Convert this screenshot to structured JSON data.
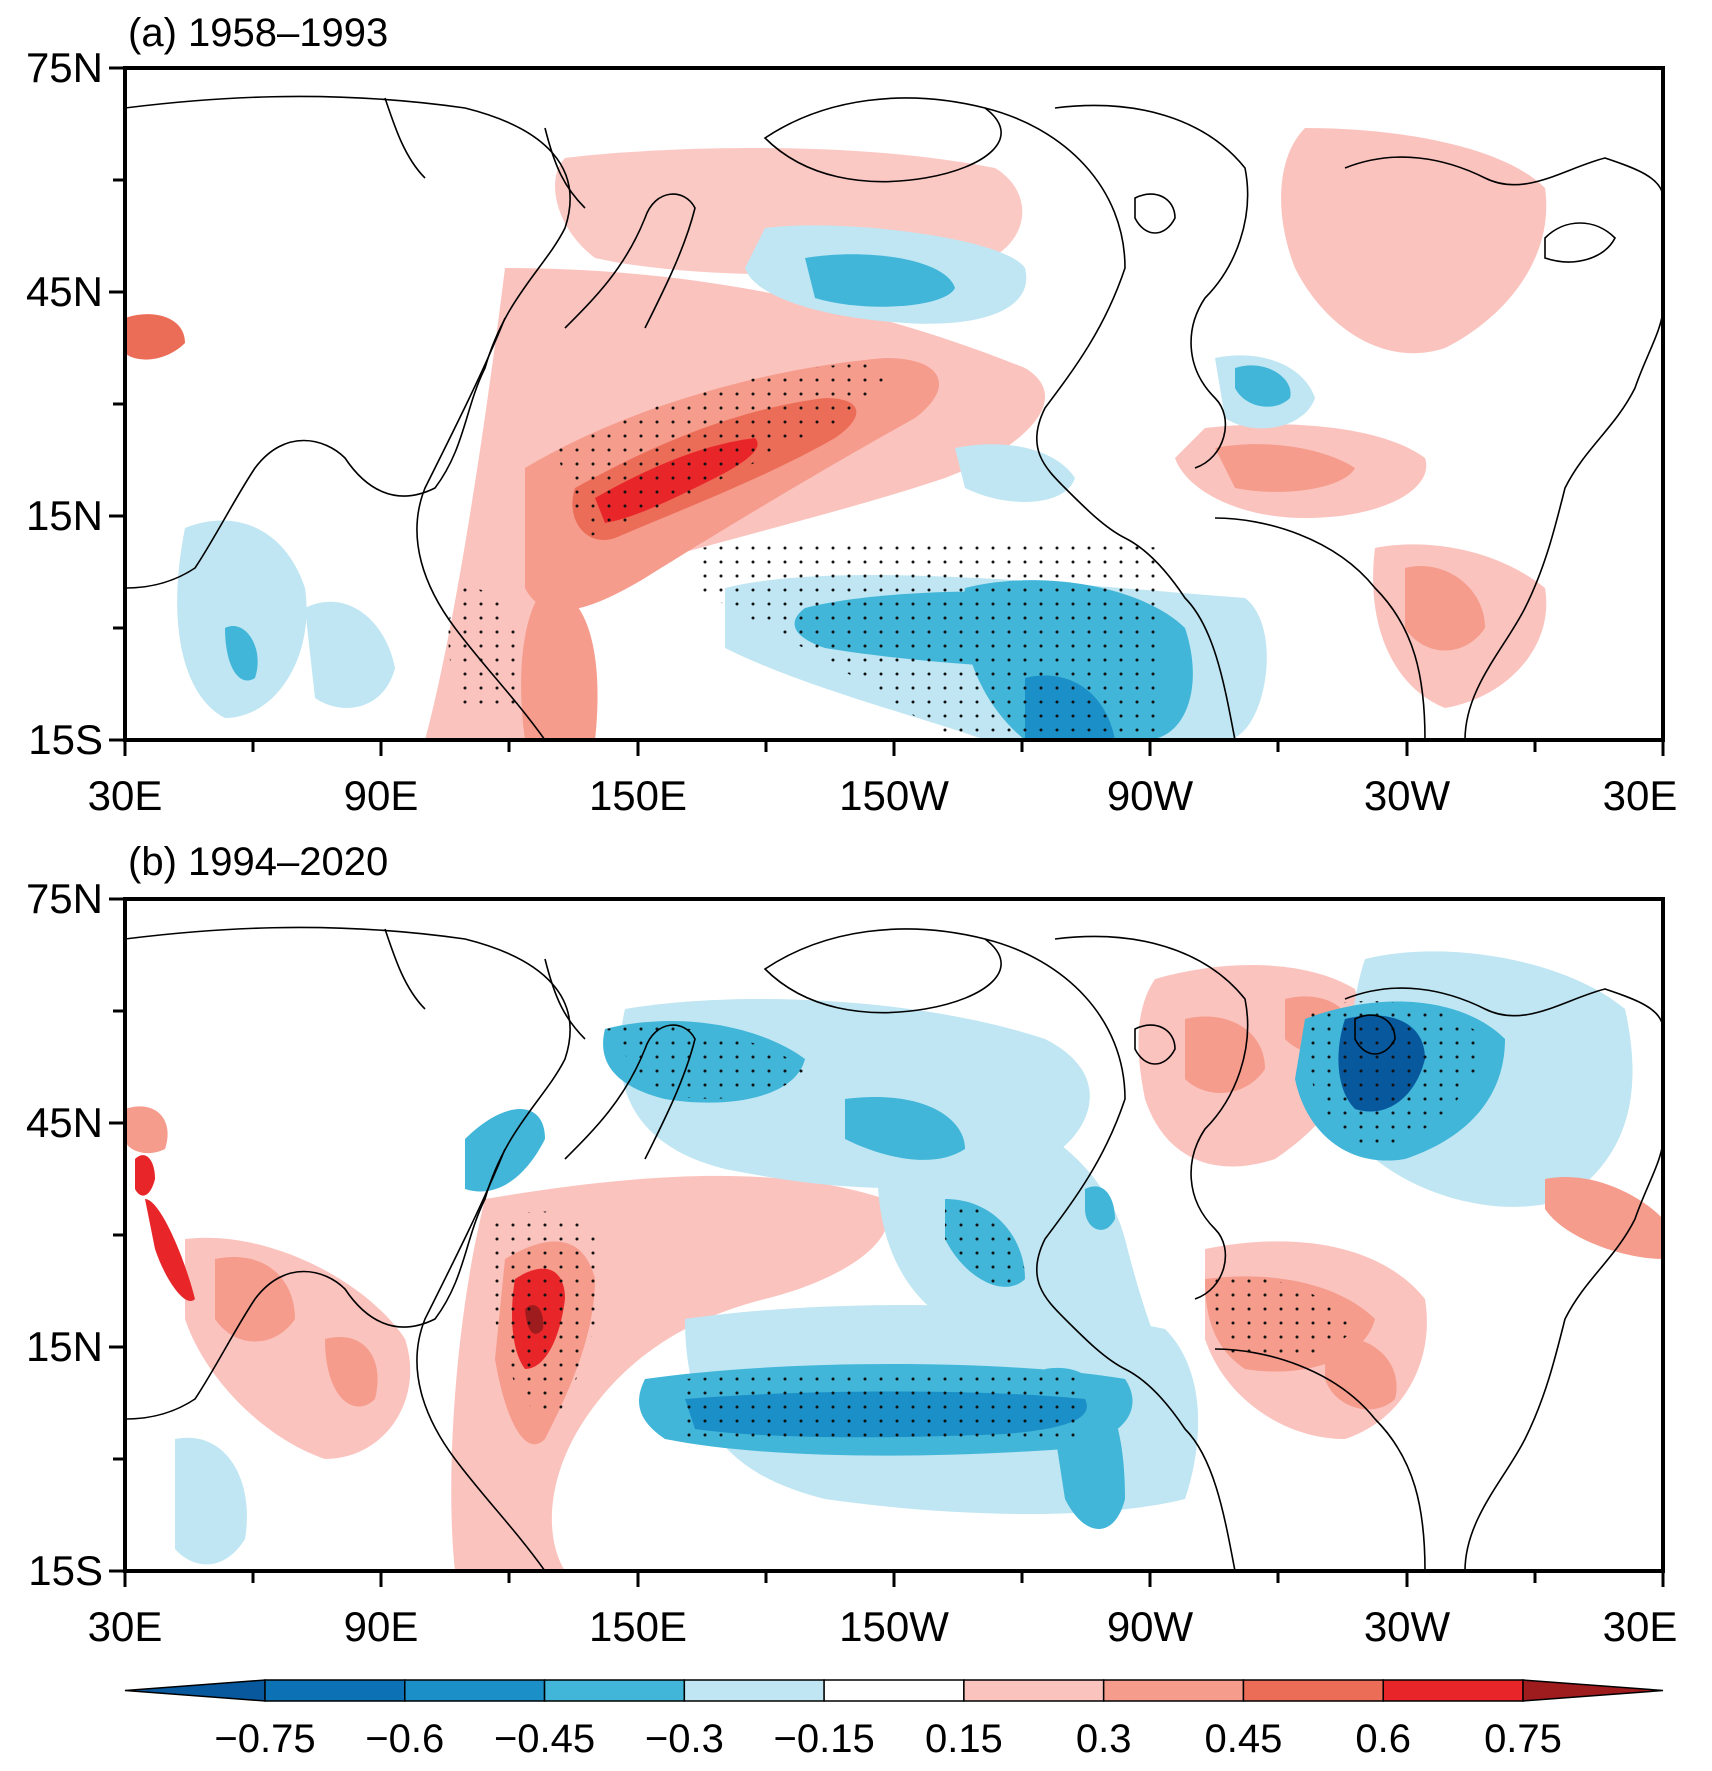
{
  "chart_data": [
    {
      "type": "heatmap",
      "title": "(a) 1958–1993",
      "lon_ticks": [
        "30E",
        "90E",
        "150E",
        "150W",
        "90W",
        "30W",
        "30E"
      ],
      "lat_ticks": [
        "75N",
        "45N",
        "15N",
        "15S"
      ],
      "lon_range_deg_east": [
        30,
        390
      ],
      "lat_range": [
        -15,
        75
      ],
      "features": [
        {
          "name": "western-pacific-warm-band",
          "sign": "positive",
          "peak": 0.6,
          "lon": [
            120,
            200
          ],
          "lat": [
            5,
            35
          ]
        },
        {
          "name": "indonesian-warm",
          "sign": "positive",
          "peak": 0.6,
          "lon": [
            115,
            135
          ],
          "lat": [
            -15,
            10
          ]
        },
        {
          "name": "eastern-tropical-pacific-cool",
          "sign": "negative",
          "peak": -0.6,
          "lon": [
            200,
            285
          ],
          "lat": [
            -15,
            8
          ]
        },
        {
          "name": "north-pacific-cool",
          "sign": "negative",
          "peak": -0.45,
          "lon": [
            165,
            225
          ],
          "lat": [
            40,
            50
          ]
        },
        {
          "name": "northwest-atlantic-cool",
          "sign": "negative",
          "peak": -0.45,
          "lon": [
            285,
            310
          ],
          "lat": [
            35,
            45
          ]
        },
        {
          "name": "subtropical-atlantic-warm",
          "sign": "positive",
          "peak": 0.45,
          "lon": [
            275,
            330
          ],
          "lat": [
            20,
            30
          ]
        },
        {
          "name": "tropical-south-atlantic-warm",
          "sign": "positive",
          "peak": 0.45,
          "lon": [
            330,
            360
          ],
          "lat": [
            -10,
            10
          ]
        },
        {
          "name": "western-indian-cool",
          "sign": "negative",
          "peak": -0.45,
          "lon": [
            40,
            70
          ],
          "lat": [
            -15,
            10
          ]
        }
      ]
    },
    {
      "type": "heatmap",
      "title": "(b) 1994–2020",
      "lon_ticks": [
        "30E",
        "90E",
        "150E",
        "150W",
        "90W",
        "30W",
        "30E"
      ],
      "lat_ticks": [
        "75N",
        "45N",
        "15N",
        "15S"
      ],
      "lon_range_deg_east": [
        30,
        390
      ],
      "lat_range": [
        -15,
        75
      ],
      "features": [
        {
          "name": "philippine-sea-warm",
          "sign": "positive",
          "peak": 0.75,
          "lon": [
            120,
            145
          ],
          "lat": [
            0,
            25
          ]
        },
        {
          "name": "eastern-tropical-pacific-cool",
          "sign": "negative",
          "peak": -0.75,
          "lon": [
            160,
            280
          ],
          "lat": [
            -10,
            5
          ]
        },
        {
          "name": "north-pacific-cool",
          "sign": "negative",
          "peak": -0.45,
          "lon": [
            150,
            220
          ],
          "lat": [
            35,
            50
          ]
        },
        {
          "name": "north-atlantic-cool",
          "sign": "negative",
          "peak": -0.75,
          "lon": [
            330,
            370
          ],
          "lat": [
            35,
            65
          ]
        },
        {
          "name": "labrador-sea-warm",
          "sign": "positive",
          "peak": 0.45,
          "lon": [
            295,
            330
          ],
          "lat": [
            45,
            65
          ]
        },
        {
          "name": "tropical-atlantic-warm",
          "sign": "positive",
          "peak": 0.45,
          "lon": [
            280,
            340
          ],
          "lat": [
            0,
            20
          ]
        },
        {
          "name": "arabian-sea-warm",
          "sign": "positive",
          "peak": 0.45,
          "lon": [
            55,
            90
          ],
          "lat": [
            5,
            25
          ]
        },
        {
          "name": "red-sea-warm",
          "sign": "positive",
          "peak": 0.75,
          "lon": [
            32,
            42
          ],
          "lat": [
            15,
            30
          ]
        }
      ]
    }
  ],
  "colorbar": {
    "ticks": [
      "−0.75",
      "−0.6",
      "−0.45",
      "−0.3",
      "−0.15",
      "0.15",
      "0.3",
      "0.45",
      "0.6",
      "0.75"
    ],
    "colors": [
      "#08589e",
      "#0d71b6",
      "#1b8fc7",
      "#41b6d9",
      "#bfe6f2",
      "#ffffff",
      "#fbc3be",
      "#f59c8c",
      "#ec6d57",
      "#e8262a",
      "#9e1b1e"
    ]
  }
}
